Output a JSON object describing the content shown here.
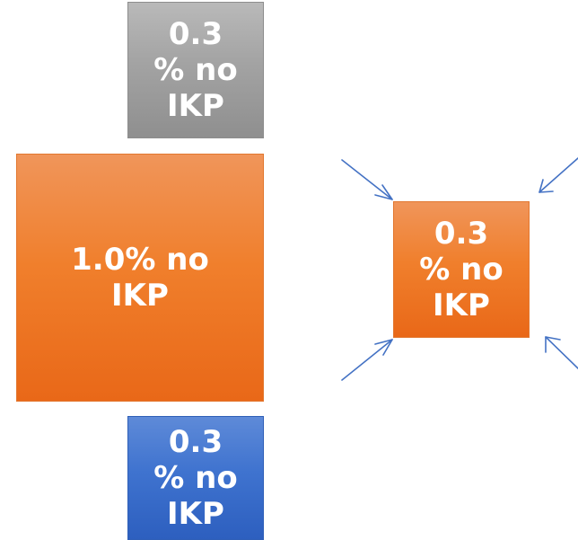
{
  "boxes": {
    "gray": {
      "label": "0.3\n% no\nIKP",
      "color": "#a3a3a3"
    },
    "orange_large": {
      "label": "1.0% no\nIKP",
      "color": "#f07f2c"
    },
    "blue": {
      "label": "0.3\n% no\nIKP",
      "color": "#3f73cf"
    },
    "orange_small": {
      "label": "0.3\n% no\nIKP",
      "color": "#f07f2c"
    }
  },
  "arrow_color": "#4472c4"
}
